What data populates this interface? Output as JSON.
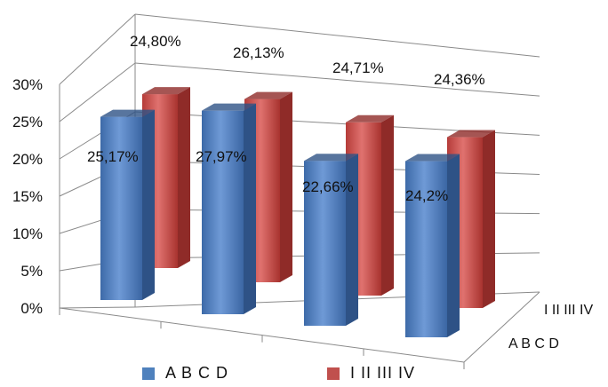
{
  "chart_data": {
    "type": "bar",
    "title": "",
    "xlabel": "",
    "ylabel": "",
    "ylim": [
      0,
      30
    ],
    "y_ticks": [
      "0%",
      "5%",
      "10%",
      "15%",
      "20%",
      "25%",
      "30%"
    ],
    "grid": true,
    "legend_position": "bottom",
    "categories": [
      "",
      "",
      "",
      ""
    ],
    "series": [
      {
        "name": "A B C D",
        "values": [
          25.17,
          27.97,
          22.66,
          24.2
        ],
        "labels": [
          "25,17%",
          "27,97%",
          "22,66%",
          "24,2%"
        ],
        "color": "#4f81bd"
      },
      {
        "name": "I II III IV",
        "values": [
          24.8,
          26.13,
          24.71,
          24.36
        ],
        "labels": [
          "24,80%",
          "26,13%",
          "24,71%",
          "24,36%"
        ],
        "color": "#c0504d"
      }
    ]
  }
}
